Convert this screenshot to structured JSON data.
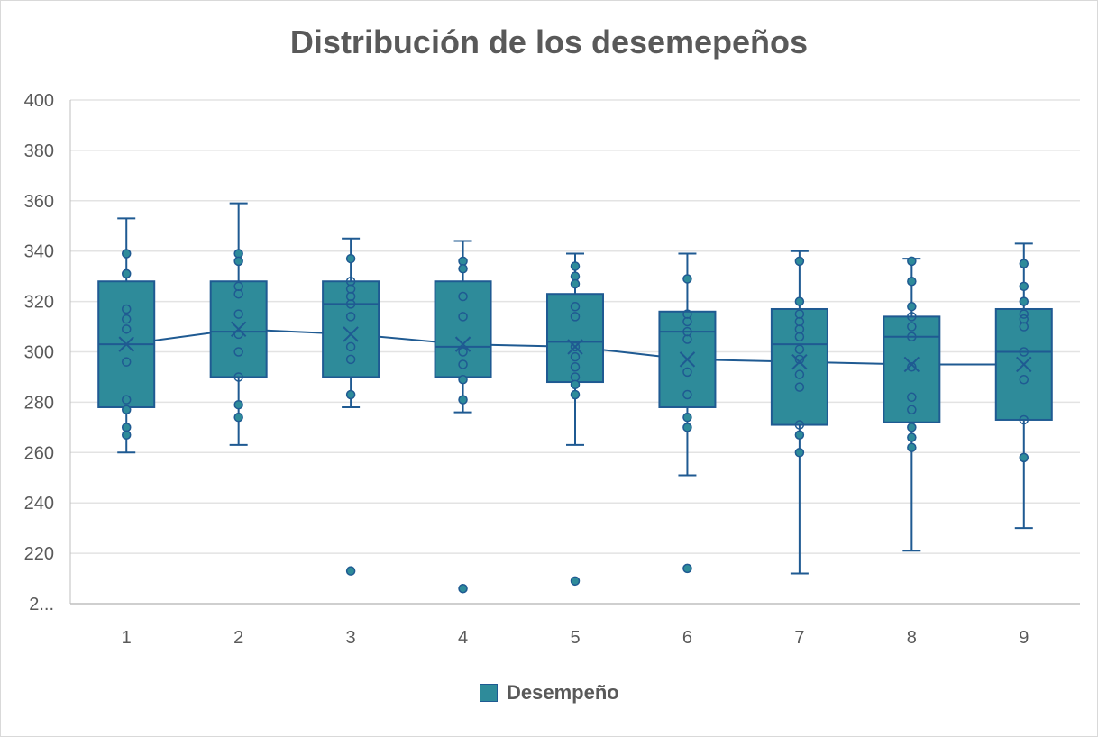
{
  "chart_data": {
    "type": "boxplot",
    "title": "Distribución de los desemepeños",
    "xlabel": "",
    "ylabel": "",
    "ylim": [
      200,
      400
    ],
    "yticks": [
      400,
      380,
      360,
      340,
      320,
      300,
      280,
      260,
      240,
      220
    ],
    "ybottom_label": "2...",
    "grid": true,
    "legend": {
      "position": "bottom",
      "label": "Desempeño"
    },
    "colors": {
      "box_fill": "#2e8b9a",
      "box_stroke": "#1f5a92",
      "grid": "#e3e3e3",
      "axis": "#bfbfbf"
    },
    "categories": [
      "1",
      "2",
      "3",
      "4",
      "5",
      "6",
      "7",
      "8",
      "9"
    ],
    "series": [
      {
        "name": "Desempeño",
        "boxes": [
          {
            "min": 260,
            "q1": 278,
            "median": 303,
            "q3": 328,
            "max": 353,
            "mean": 303,
            "points": [
              339,
              331,
              317,
              313,
              309,
              296,
              281,
              277,
              270,
              267
            ],
            "outliers": []
          },
          {
            "min": 263,
            "q1": 290,
            "median": 308,
            "q3": 328,
            "max": 359,
            "mean": 309,
            "points": [
              339,
              336,
              326,
              323,
              315,
              307,
              300,
              290,
              279,
              274
            ],
            "outliers": []
          },
          {
            "min": 278,
            "q1": 290,
            "median": 319,
            "q3": 328,
            "max": 345,
            "mean": 307,
            "points": [
              337,
              328,
              325,
              322,
              319,
              314,
              302,
              297,
              283
            ],
            "outliers": [
              213
            ]
          },
          {
            "min": 276,
            "q1": 290,
            "median": 302,
            "q3": 328,
            "max": 344,
            "mean": 303,
            "points": [
              336,
              333,
              322,
              314,
              300,
              295,
              289,
              281
            ],
            "outliers": [
              206
            ]
          },
          {
            "min": 263,
            "q1": 288,
            "median": 304,
            "q3": 323,
            "max": 339,
            "mean": 302,
            "points": [
              334,
              330,
              327,
              318,
              314,
              302,
              298,
              294,
              290,
              287,
              283
            ],
            "outliers": [
              209
            ]
          },
          {
            "min": 251,
            "q1": 278,
            "median": 308,
            "q3": 316,
            "max": 339,
            "mean": 297,
            "points": [
              329,
              315,
              312,
              308,
              305,
              292,
              283,
              274,
              270
            ],
            "outliers": [
              214
            ]
          },
          {
            "min": 212,
            "q1": 271,
            "median": 303,
            "q3": 317,
            "max": 340,
            "mean": 296,
            "points": [
              336,
              320,
              315,
              312,
              309,
              306,
              301,
              297,
              291,
              286,
              271,
              267,
              260
            ],
            "outliers": []
          },
          {
            "min": 221,
            "q1": 272,
            "median": 306,
            "q3": 314,
            "max": 337,
            "mean": 295,
            "points": [
              336,
              328,
              318,
              314,
              310,
              306,
              294,
              282,
              277,
              270,
              266,
              262
            ],
            "outliers": []
          },
          {
            "min": 230,
            "q1": 273,
            "median": 300,
            "q3": 317,
            "max": 343,
            "mean": 295,
            "points": [
              335,
              326,
              320,
              315,
              313,
              310,
              300,
              289,
              273,
              258
            ],
            "outliers": []
          }
        ]
      }
    ]
  }
}
